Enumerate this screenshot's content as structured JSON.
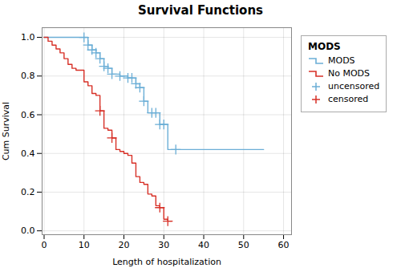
{
  "chart_data": {
    "type": "line",
    "title": "Survival Functions",
    "x_label": "Length of hospitalization",
    "y_label": "Cum Survival",
    "legend_title": "MODS",
    "legend": "right",
    "grid": true,
    "xlim": [
      -0.5,
      62
    ],
    "ylim": [
      -0.02,
      1.05
    ],
    "xticks": [
      0,
      10,
      20,
      30,
      40,
      50,
      60
    ],
    "yticks": [
      {
        "value": 0.0,
        "label": "0.0"
      },
      0.2,
      0.4,
      0.6,
      0.8,
      {
        "value": 1.0,
        "label": "1.0"
      }
    ],
    "series": [
      {
        "name": "MODS",
        "type": "step",
        "color": "#6baed6",
        "x": [
          0,
          10,
          11,
          12,
          13,
          14,
          15,
          16,
          17,
          19,
          20,
          21,
          22,
          23,
          24,
          25,
          26,
          27,
          28,
          29,
          30,
          31,
          33,
          55
        ],
        "values": [
          1.0,
          1.0,
          0.96,
          0.935,
          0.92,
          0.89,
          0.85,
          0.84,
          0.81,
          0.8,
          0.8,
          0.79,
          0.79,
          0.76,
          0.74,
          0.67,
          0.61,
          0.61,
          0.61,
          0.55,
          0.55,
          0.42,
          0.42,
          0.42
        ]
      },
      {
        "name": "No MODS",
        "type": "step",
        "color": "#d73027",
        "x": [
          0,
          1,
          2,
          3,
          4,
          5,
          6,
          7,
          8,
          10,
          11,
          12,
          13,
          14,
          15,
          16,
          17,
          18,
          19,
          20,
          21,
          22,
          23,
          24,
          25,
          26,
          27,
          28,
          29,
          30,
          31,
          32
        ],
        "values": [
          1.0,
          0.98,
          0.96,
          0.94,
          0.92,
          0.89,
          0.86,
          0.84,
          0.83,
          0.77,
          0.75,
          0.71,
          0.7,
          0.62,
          0.53,
          0.52,
          0.48,
          0.42,
          0.41,
          0.4,
          0.39,
          0.35,
          0.28,
          0.25,
          0.24,
          0.19,
          0.18,
          0.13,
          0.12,
          0.06,
          0.05,
          0.05
        ]
      },
      {
        "name": "uncensored",
        "type": "scatter",
        "marker": "plus",
        "color": "#6baed6",
        "x": [
          10,
          11,
          12,
          13,
          14,
          15,
          16,
          17,
          19,
          21,
          22,
          23,
          24,
          25,
          27,
          28,
          29,
          30,
          33
        ],
        "values": [
          1.0,
          0.96,
          0.935,
          0.92,
          0.89,
          0.85,
          0.84,
          0.81,
          0.8,
          0.79,
          0.79,
          0.76,
          0.74,
          0.67,
          0.61,
          0.61,
          0.55,
          0.55,
          0.42
        ]
      },
      {
        "name": "censored",
        "type": "scatter",
        "marker": "plus",
        "color": "#d73027",
        "x": [
          14,
          17,
          29,
          31
        ],
        "values": [
          0.62,
          0.48,
          0.12,
          0.05
        ]
      }
    ]
  }
}
